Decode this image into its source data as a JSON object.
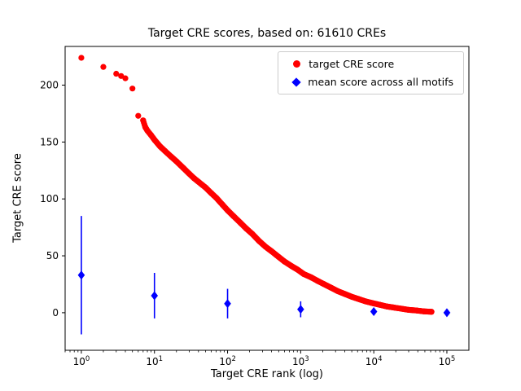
{
  "figure": {
    "title": "Target CRE scores, based on: 61610 CREs",
    "xlabel": "Target CRE rank (log)",
    "ylabel": "Target CRE score"
  },
  "legend": {
    "items": [
      {
        "label": "target CRE score",
        "marker": "circle",
        "color": "#ff0000"
      },
      {
        "label": "mean score across all motifs",
        "marker": "diamond",
        "color": "#0000ff"
      }
    ]
  },
  "chart_data": {
    "type": "scatter",
    "title": "Target CRE scores, based on: 61610 CREs",
    "xlabel": "Target CRE rank (log)",
    "ylabel": "Target CRE score",
    "xscale": "log",
    "xlim": [
      0.6,
      200000
    ],
    "ylim": [
      -33,
      234
    ],
    "xticks": [
      1,
      10,
      100,
      1000,
      10000,
      100000
    ],
    "yticks": [
      0,
      50,
      100,
      150,
      200
    ],
    "grid": false,
    "legend_position": "upper right",
    "series": [
      {
        "name": "target CRE score",
        "marker": "circle",
        "color": "#ff0000",
        "points": [
          [
            1,
            224
          ],
          [
            2,
            216
          ],
          [
            3,
            210
          ],
          [
            3.5,
            208
          ],
          [
            4,
            206
          ],
          [
            5,
            197
          ],
          [
            6,
            173
          ],
          [
            7,
            169
          ],
          [
            7.5,
            163
          ],
          [
            8,
            160
          ],
          [
            9,
            156
          ],
          [
            10,
            152
          ],
          [
            12,
            146
          ],
          [
            14,
            142
          ],
          [
            17,
            137
          ],
          [
            20,
            133
          ],
          [
            25,
            127
          ],
          [
            30,
            122
          ],
          [
            35,
            118
          ],
          [
            40,
            115
          ],
          [
            50,
            110
          ],
          [
            60,
            105
          ],
          [
            70,
            101
          ],
          [
            85,
            95
          ],
          [
            100,
            90
          ],
          [
            120,
            85
          ],
          [
            150,
            79
          ],
          [
            180,
            74
          ],
          [
            220,
            69
          ],
          [
            270,
            63
          ],
          [
            330,
            58
          ],
          [
            400,
            54
          ],
          [
            500,
            49
          ],
          [
            600,
            45
          ],
          [
            750,
            41
          ],
          [
            900,
            38
          ],
          [
            1100,
            34
          ],
          [
            1400,
            31
          ],
          [
            1700,
            28
          ],
          [
            2100,
            25
          ],
          [
            2600,
            22
          ],
          [
            3200,
            19
          ],
          [
            4000,
            16.5
          ],
          [
            5000,
            14
          ],
          [
            6200,
            12
          ],
          [
            7700,
            10
          ],
          [
            9500,
            8.5
          ],
          [
            12000,
            7
          ],
          [
            15000,
            5.5
          ],
          [
            19000,
            4.5
          ],
          [
            24000,
            3.5
          ],
          [
            30000,
            2.5
          ],
          [
            38000,
            2
          ],
          [
            48000,
            1.2
          ],
          [
            61610,
            0.8
          ]
        ]
      },
      {
        "name": "mean score across all motifs",
        "marker": "diamond",
        "color": "#0000ff",
        "points": [
          [
            1,
            33
          ],
          [
            10,
            15
          ],
          [
            100,
            8
          ],
          [
            1000,
            3
          ],
          [
            10000,
            1
          ],
          [
            100000,
            0
          ]
        ],
        "yerr": [
          52,
          20,
          13,
          7,
          3,
          1
        ]
      }
    ]
  }
}
